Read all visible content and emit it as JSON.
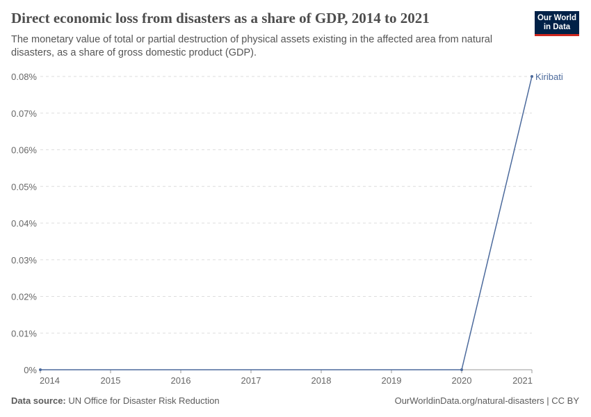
{
  "header": {
    "title": "Direct economic loss from disasters as a share of GDP, 2014 to 2021",
    "subtitle": "The monetary value of total or partial destruction of physical assets existing in the affected area from natural disasters, as a share of gross domestic product (GDP).",
    "logo": "Our World in Data"
  },
  "chart_data": {
    "type": "line",
    "title": "Direct economic loss from disasters as a share of GDP, 2014 to 2021",
    "x": [
      2014,
      2015,
      2016,
      2017,
      2018,
      2019,
      2020,
      2021
    ],
    "series": [
      {
        "name": "Kiribati",
        "color": "#4c6a9c",
        "values": [
          0,
          0,
          0,
          0,
          0,
          0,
          0,
          0.08
        ]
      }
    ],
    "xlim": [
      2014,
      2021
    ],
    "ylim": [
      0,
      0.08
    ],
    "yticks": [
      0,
      0.01,
      0.02,
      0.03,
      0.04,
      0.05,
      0.06,
      0.07,
      0.08
    ],
    "ytick_labels": [
      "0%",
      "0.01%",
      "0.02%",
      "0.03%",
      "0.04%",
      "0.05%",
      "0.06%",
      "0.07%",
      "0.08%"
    ],
    "xtick_labels": [
      "2014",
      "2015",
      "2016",
      "2017",
      "2018",
      "2019",
      "2020",
      "2021"
    ],
    "grid": "horizontal dashed",
    "legend": "inline-right"
  },
  "footer": {
    "source_label": "Data source:",
    "source": "UN Office for Disaster Risk Reduction",
    "url": "OurWorldinData.org/natural-disasters | CC BY"
  }
}
